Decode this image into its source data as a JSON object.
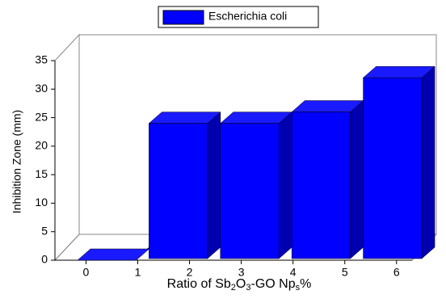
{
  "chart_data": {
    "type": "bar3d",
    "legend": "Escherichia coli",
    "x_label": [
      "Ratio of Sb",
      "2",
      "O",
      "3",
      "-GO Np",
      "s",
      "%"
    ],
    "y_label": "Inhibition Zone  (mm)",
    "categories": [
      null,
      null,
      null,
      null,
      null
    ],
    "values": [
      0,
      24,
      24,
      26,
      32
    ],
    "color": "#0000ff",
    "xlim": [
      -0.6,
      6.3
    ],
    "xticks": [
      0,
      1,
      2,
      3,
      4,
      5,
      6
    ],
    "ylim": [
      0,
      35
    ],
    "yticks": [
      0,
      5,
      10,
      15,
      20,
      25,
      30,
      35
    ]
  }
}
